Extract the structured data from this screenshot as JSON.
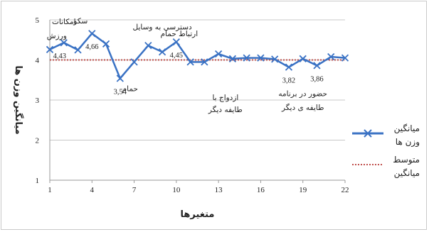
{
  "chart_data": {
    "type": "line",
    "x": [
      1,
      2,
      3,
      4,
      5,
      6,
      7,
      8,
      9,
      10,
      11,
      12,
      13,
      14,
      15,
      16,
      17,
      18,
      19,
      20,
      21,
      22
    ],
    "xticks": [
      1,
      4,
      7,
      10,
      13,
      16,
      19,
      22
    ],
    "ylim": [
      1,
      5
    ],
    "yticks": [
      1,
      2,
      3,
      4,
      5
    ],
    "grid": true,
    "xlabel": "متغیرها",
    "ylabel": "میانگین وزن ها",
    "series": [
      {
        "name": "میانگین وزن ها",
        "color": "#3a72c4",
        "marker": "x",
        "values": [
          4.26,
          4.43,
          4.25,
          4.66,
          4.4,
          3.54,
          3.95,
          4.36,
          4.2,
          4.45,
          3.95,
          3.95,
          4.15,
          4.03,
          4.05,
          4.05,
          4.02,
          3.82,
          4.03,
          3.86,
          4.08,
          4.05
        ]
      },
      {
        "name": "متوسط میانگین",
        "color": "#c0504d",
        "style": "dotted",
        "values": [
          4.0,
          4.0,
          4.0,
          4.0,
          4.0,
          4.0,
          4.0,
          4.0,
          4.0,
          4.0,
          4.0,
          4.0,
          4.0,
          4.0,
          4.0,
          4.0,
          4.0,
          4.0,
          4.0,
          4.0,
          4.0,
          4.0
        ]
      }
    ],
    "data_labels": [
      {
        "x": 2,
        "text": "4,43"
      },
      {
        "x": 4,
        "text": "4,66"
      },
      {
        "x": 6,
        "text": "3,54"
      },
      {
        "x": 10,
        "text": "4,45"
      },
      {
        "x": 18,
        "text": "3,82"
      },
      {
        "x": 20,
        "text": "3,86"
      }
    ],
    "annotations": [
      {
        "x": 2,
        "y": 4.43,
        "text": "امکانات"
      },
      {
        "x": 2,
        "y": 4.43,
        "text": "ورزش"
      },
      {
        "x": 4,
        "y": 4.66,
        "text": "سکو"
      },
      {
        "x": 9,
        "y": 4.3,
        "text": "دسترسی به وسایل"
      },
      {
        "x": 10,
        "y": 4.45,
        "text": "ارتباط حمام"
      },
      {
        "x": 6,
        "y": 3.54,
        "text": "حمام"
      },
      {
        "x": 14,
        "y": 3.0,
        "text": "ازدواج با"
      },
      {
        "x": 14,
        "y": 2.7,
        "text": "طایفه دیگر"
      },
      {
        "x": 19,
        "y": 3.1,
        "text": "حضور در برنامه"
      },
      {
        "x": 19,
        "y": 2.75,
        "text": "طایفه ی دیگر"
      }
    ],
    "legend": {
      "position": "right",
      "entries": [
        {
          "lines": [
            "میانگین",
            "وزن ها"
          ],
          "series": 0
        },
        {
          "lines": [
            "متوسط",
            "میانگین"
          ],
          "series": 1
        }
      ]
    }
  }
}
